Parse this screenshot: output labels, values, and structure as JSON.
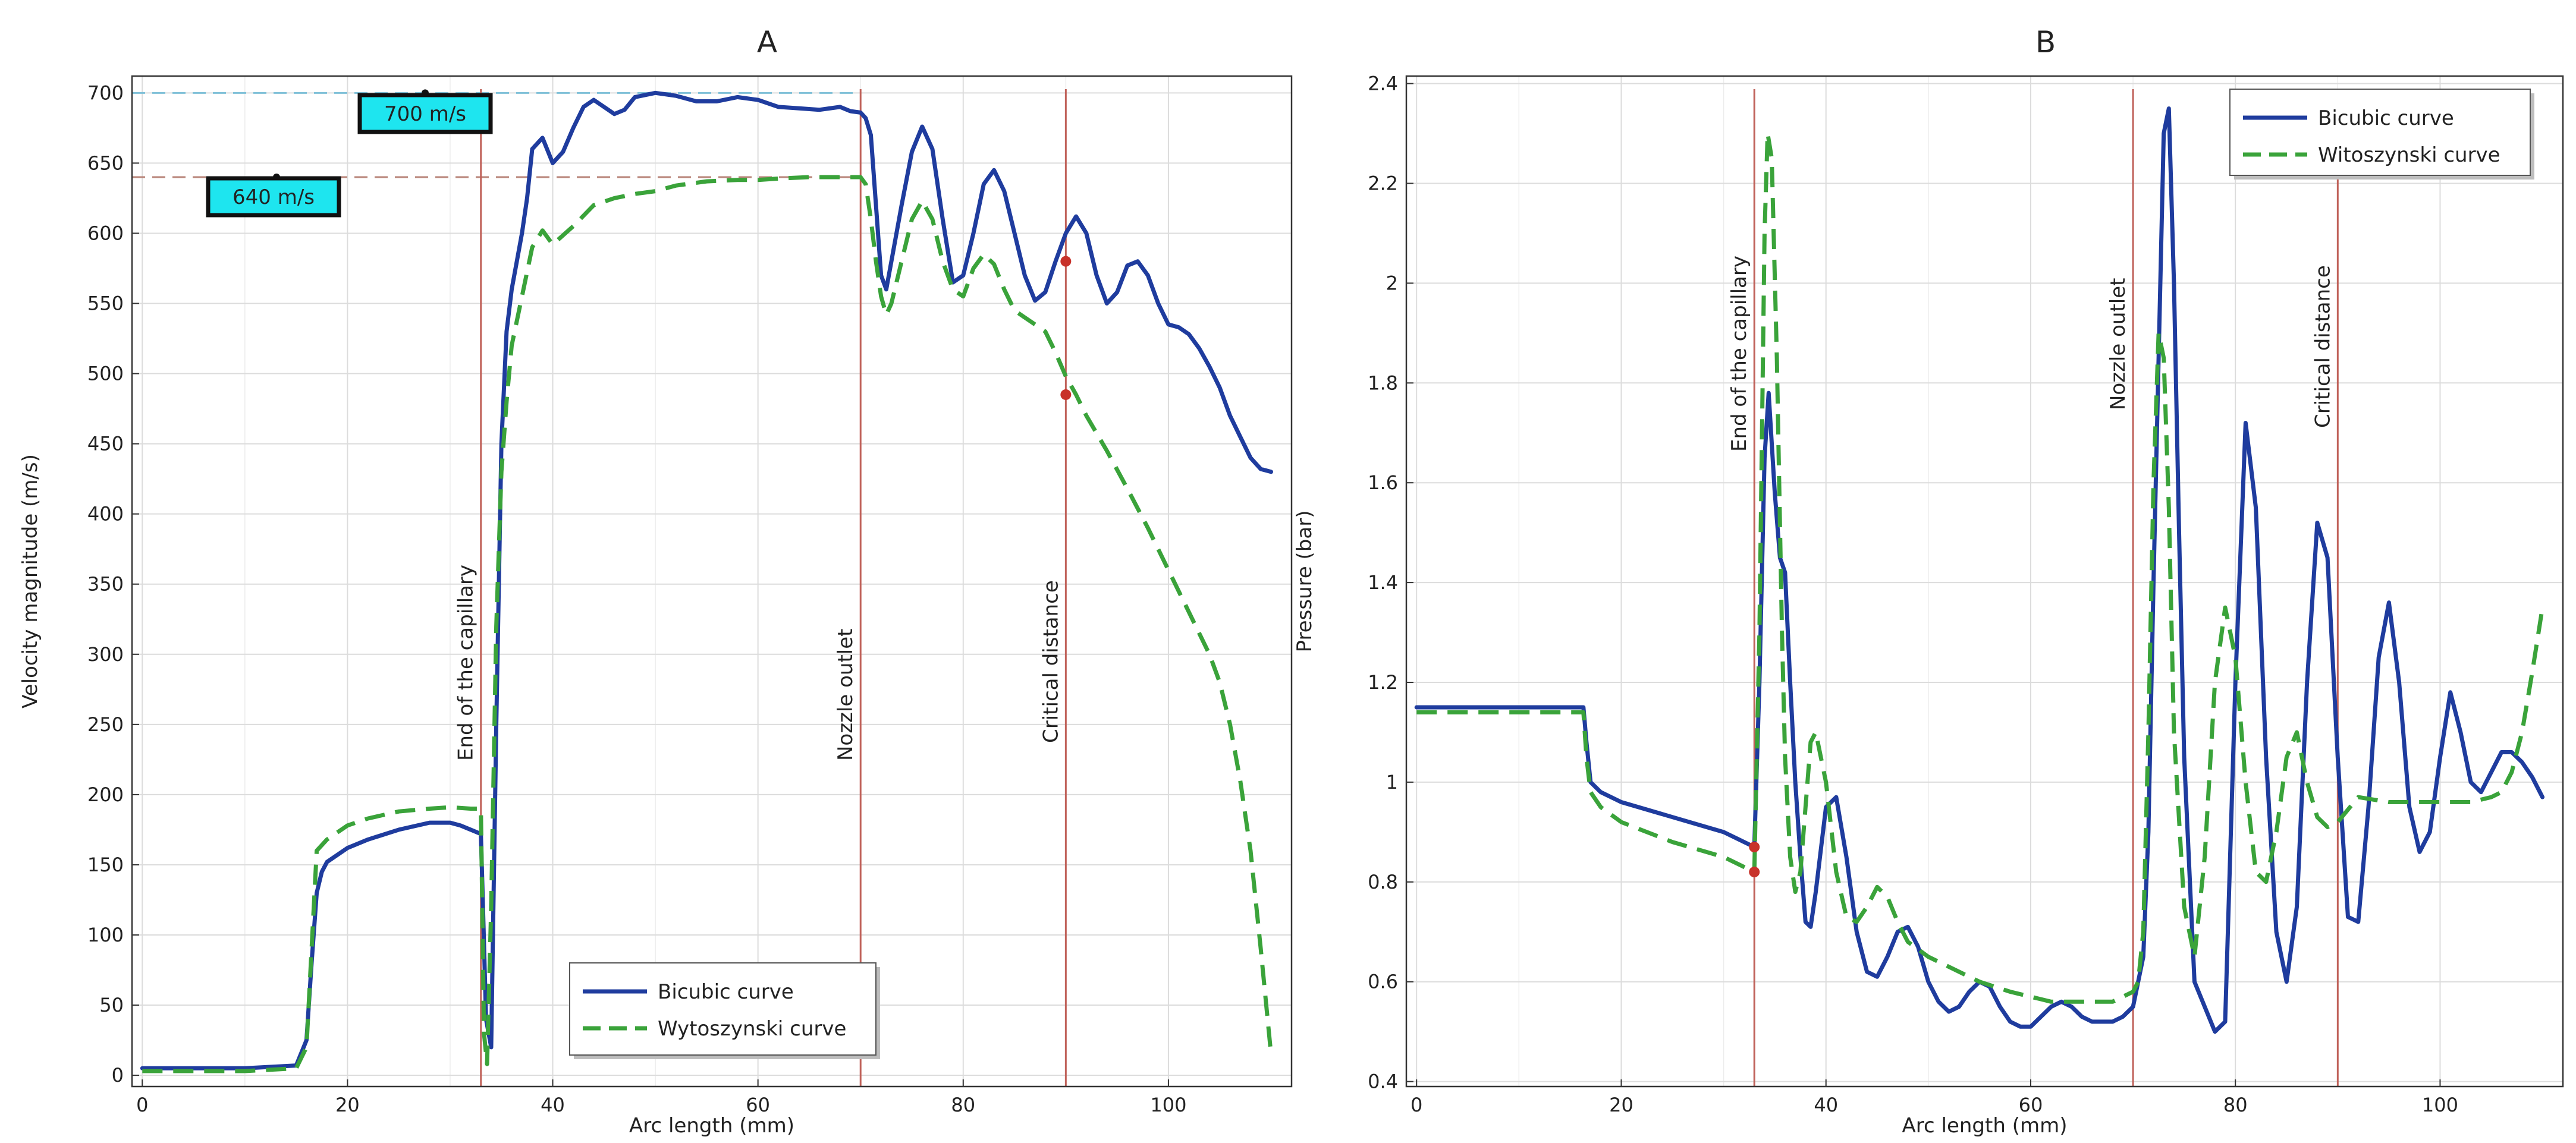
{
  "chart_data": [
    {
      "type": "line",
      "panel": "A",
      "title": "A",
      "xlabel": "Arc length (mm)",
      "ylabel": "Velocity magnitude (m/s)",
      "xlim": [
        -1,
        112
      ],
      "ylim": [
        -8,
        712
      ],
      "xticks": [
        0,
        20,
        40,
        60,
        80,
        100
      ],
      "yticks": [
        0,
        50,
        100,
        150,
        200,
        250,
        300,
        350,
        400,
        450,
        500,
        550,
        600,
        650,
        700
      ],
      "grid": true,
      "legend_position": "bottom-right",
      "series": [
        {
          "name": "Bicubic curve",
          "color": "#1f3c9e",
          "style": "solid",
          "x": [
            0,
            5,
            10,
            15,
            16,
            16.5,
            17,
            17.5,
            18,
            20,
            22,
            25,
            28,
            30,
            31,
            32,
            33,
            33.2,
            33.5,
            34,
            34.5,
            35,
            35.5,
            36,
            37,
            37.5,
            38,
            39,
            40,
            41,
            42,
            43,
            44,
            45,
            46,
            47,
            48,
            50,
            52,
            54,
            56,
            58,
            60,
            62,
            64,
            66,
            68,
            69,
            70,
            70.5,
            71,
            71.5,
            72,
            72.5,
            73,
            74,
            75,
            76,
            77,
            78,
            79,
            80,
            81,
            82,
            83,
            84,
            85,
            86,
            87,
            88,
            89,
            90,
            91,
            92,
            93,
            94,
            95,
            96,
            97,
            98,
            99,
            100,
            101,
            102,
            103,
            104,
            105,
            106,
            107,
            108,
            109,
            110
          ],
          "y": [
            5,
            5,
            5,
            7,
            25,
            80,
            130,
            145,
            152,
            162,
            168,
            175,
            180,
            180,
            178,
            175,
            172,
            120,
            40,
            20,
            250,
            450,
            530,
            560,
            600,
            625,
            660,
            668,
            650,
            658,
            675,
            690,
            695,
            690,
            685,
            688,
            697,
            700,
            698,
            694,
            694,
            697,
            695,
            690,
            689,
            688,
            690,
            687,
            686,
            682,
            670,
            620,
            570,
            560,
            580,
            620,
            658,
            676,
            660,
            610,
            565,
            570,
            600,
            635,
            645,
            630,
            600,
            570,
            552,
            558,
            580,
            600,
            612,
            600,
            570,
            550,
            558,
            577,
            580,
            570,
            550,
            535,
            533,
            528,
            518,
            505,
            490,
            470,
            455,
            440,
            432,
            430
          ]
        },
        {
          "name": "Wytoszynski curve",
          "color": "#3aa33a",
          "style": "dashed",
          "x": [
            0,
            5,
            10,
            15,
            16,
            16.5,
            17,
            18,
            20,
            22,
            25,
            28,
            30,
            32,
            33,
            33.3,
            33.6,
            34,
            34.5,
            35,
            35.5,
            36,
            37,
            38,
            39,
            40,
            42,
            44,
            46,
            48,
            50,
            52,
            55,
            58,
            60,
            62,
            65,
            68,
            70,
            70.5,
            71,
            71.5,
            72,
            72.5,
            73,
            74,
            75,
            76,
            77,
            78,
            79,
            80,
            81,
            82,
            83,
            84,
            85,
            86,
            87,
            88,
            89,
            90,
            91,
            92,
            94,
            96,
            98,
            100,
            102,
            104,
            105,
            106,
            107,
            108,
            109,
            110
          ],
          "y": [
            3,
            3,
            3,
            5,
            20,
            90,
            160,
            168,
            178,
            183,
            188,
            190,
            191,
            190,
            190,
            30,
            8,
            120,
            320,
            430,
            480,
            520,
            555,
            590,
            602,
            592,
            605,
            620,
            625,
            628,
            630,
            634,
            637,
            638,
            638,
            639,
            640,
            640,
            640,
            635,
            610,
            580,
            555,
            542,
            550,
            580,
            610,
            623,
            610,
            580,
            560,
            555,
            575,
            585,
            578,
            560,
            545,
            540,
            535,
            530,
            515,
            498,
            485,
            470,
            445,
            418,
            390,
            360,
            330,
            300,
            280,
            250,
            210,
            160,
            90,
            15
          ]
        }
      ],
      "vertical_lines": [
        {
          "x": 33,
          "label": "End of the capillary"
        },
        {
          "x": 70,
          "label": "Nozzle outlet"
        },
        {
          "x": 90,
          "label": "Critical distance"
        }
      ],
      "reference_lines": [
        {
          "y": 700,
          "label": "700 m/s",
          "color": "#7ec0d8",
          "x_to": 70
        },
        {
          "y": 640,
          "label": "640 m/s",
          "color": "#b8857a",
          "x_to": 70
        }
      ],
      "markers": [
        {
          "x": 90,
          "y": 580
        },
        {
          "x": 90,
          "y": 485
        }
      ]
    },
    {
      "type": "line",
      "panel": "B",
      "title": "B",
      "xlabel": "Arc length (mm)",
      "ylabel": "Pressure (bar)",
      "xlim": [
        -1,
        112
      ],
      "ylim": [
        0.39,
        2.415
      ],
      "xticks": [
        0,
        20,
        40,
        60,
        80,
        100
      ],
      "yticks": [
        0.4,
        0.6,
        0.8,
        1,
        1.2,
        1.4,
        1.6,
        1.8,
        2,
        2.2,
        2.4
      ],
      "yticklabels": [
        "0.4",
        "0.6",
        "0.8",
        "1",
        "1.2",
        "1.4",
        "1.6",
        "1.8",
        "2",
        "2.2",
        "2.4"
      ],
      "grid": true,
      "legend_position": "top-right",
      "series": [
        {
          "name": "Bicubic curve",
          "color": "#1f3c9e",
          "style": "solid",
          "x": [
            0,
            5,
            10,
            15,
            16.3,
            16.6,
            17,
            18,
            20,
            25,
            30,
            32,
            33,
            33.5,
            34,
            34.4,
            35,
            35.5,
            36,
            36.5,
            37,
            37.5,
            38,
            38.5,
            39,
            40,
            41,
            42,
            43,
            44,
            45,
            46,
            47,
            48,
            49,
            50,
            51,
            52,
            53,
            54,
            55,
            56,
            57,
            58,
            59,
            60,
            61,
            62,
            63,
            64,
            65,
            66,
            67,
            68,
            69,
            70,
            71,
            71.5,
            72,
            72.5,
            73,
            73.5,
            74,
            74.5,
            75,
            76,
            77,
            78,
            79,
            80,
            81,
            82,
            83,
            84,
            85,
            86,
            87,
            88,
            89,
            90,
            91,
            92,
            93,
            94,
            95,
            96,
            97,
            98,
            99,
            100,
            101,
            102,
            103,
            104,
            105,
            106,
            107,
            108,
            109,
            110
          ],
          "y": [
            1.15,
            1.15,
            1.15,
            1.15,
            1.15,
            1.08,
            1.0,
            0.98,
            0.96,
            0.93,
            0.9,
            0.88,
            0.87,
            1.2,
            1.65,
            1.78,
            1.58,
            1.45,
            1.42,
            1.2,
            1.0,
            0.85,
            0.72,
            0.71,
            0.78,
            0.95,
            0.97,
            0.85,
            0.7,
            0.62,
            0.61,
            0.65,
            0.7,
            0.71,
            0.67,
            0.6,
            0.56,
            0.54,
            0.55,
            0.58,
            0.6,
            0.59,
            0.55,
            0.52,
            0.51,
            0.51,
            0.53,
            0.55,
            0.56,
            0.55,
            0.53,
            0.52,
            0.52,
            0.52,
            0.53,
            0.55,
            0.65,
            0.9,
            1.4,
            1.85,
            2.3,
            2.35,
            2.0,
            1.5,
            1.05,
            0.6,
            0.55,
            0.5,
            0.52,
            1.2,
            1.72,
            1.55,
            1.05,
            0.7,
            0.6,
            0.75,
            1.2,
            1.52,
            1.45,
            1.05,
            0.73,
            0.72,
            0.95,
            1.25,
            1.36,
            1.2,
            0.95,
            0.86,
            0.9,
            1.05,
            1.18,
            1.1,
            1.0,
            0.98,
            1.02,
            1.06,
            1.06,
            1.04,
            1.01,
            0.97
          ]
        },
        {
          "name": "Witoszynski curve",
          "color": "#3aa33a",
          "style": "dashed",
          "x": [
            0,
            5,
            10,
            15,
            16.3,
            16.6,
            17,
            18,
            20,
            25,
            30,
            32,
            33,
            33.5,
            34,
            34.3,
            34.7,
            35.2,
            35.7,
            36,
            36.5,
            37,
            37.5,
            38,
            38.5,
            39,
            40,
            41,
            42,
            43,
            44,
            45,
            46,
            47,
            48,
            50,
            52,
            55,
            58,
            60,
            62,
            65,
            68,
            70,
            70.5,
            71,
            71.5,
            72,
            72.5,
            73,
            73.5,
            74,
            75,
            76,
            77,
            78,
            79,
            80,
            81,
            82,
            83,
            84,
            85,
            86,
            87,
            88,
            89,
            90,
            92,
            95,
            100,
            103,
            105,
            106,
            107,
            108,
            109,
            110
          ],
          "y": [
            1.14,
            1.14,
            1.14,
            1.14,
            1.14,
            1.05,
            0.98,
            0.95,
            0.92,
            0.88,
            0.85,
            0.83,
            0.82,
            1.3,
            2.1,
            2.3,
            2.25,
            1.85,
            1.3,
            1.05,
            0.85,
            0.78,
            0.82,
            0.95,
            1.08,
            1.1,
            1.0,
            0.82,
            0.73,
            0.72,
            0.75,
            0.79,
            0.77,
            0.72,
            0.68,
            0.65,
            0.63,
            0.6,
            0.58,
            0.57,
            0.56,
            0.56,
            0.56,
            0.58,
            0.6,
            0.7,
            1.1,
            1.6,
            1.9,
            1.85,
            1.55,
            1.1,
            0.75,
            0.65,
            0.85,
            1.2,
            1.35,
            1.25,
            1.0,
            0.82,
            0.8,
            0.9,
            1.05,
            1.1,
            1.0,
            0.93,
            0.91,
            0.92,
            0.97,
            0.96,
            0.96,
            0.96,
            0.97,
            0.98,
            1.02,
            1.1,
            1.22,
            1.35
          ]
        }
      ],
      "vertical_lines": [
        {
          "x": 33,
          "label": "End of the capillary"
        },
        {
          "x": 70,
          "label": "Nozzle outlet"
        },
        {
          "x": 90,
          "label": "Critical distance"
        }
      ],
      "markers": [
        {
          "x": 33,
          "y": 0.87
        },
        {
          "x": 33,
          "y": 0.82
        }
      ]
    }
  ]
}
